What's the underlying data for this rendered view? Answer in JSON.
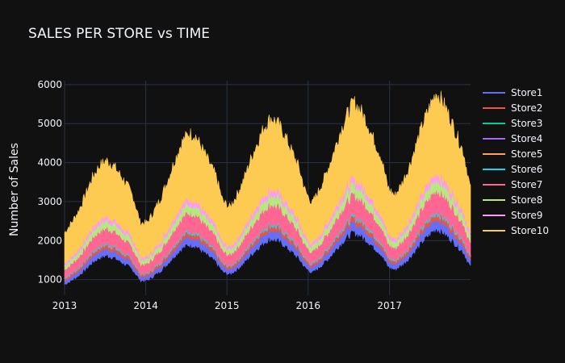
{
  "chart_data": {
    "type": "area",
    "title": "SALES PER STORE vs TIME",
    "xlabel": "",
    "ylabel": "Number of Sales",
    "x_ticks": [
      "2013",
      "2014",
      "2015",
      "2016",
      "2017"
    ],
    "y_ticks": [
      1000,
      2000,
      3000,
      4000,
      5000,
      6000
    ],
    "ylim": [
      600,
      6100
    ],
    "xlim": [
      "2013-01-01",
      "2017-12-31"
    ],
    "grid": true,
    "legend_position": "right",
    "stacked": true,
    "total_monthly_approx": [
      2200,
      2450,
      2750,
      3150,
      3600,
      3900,
      4050,
      3950,
      3700,
      3450,
      3100,
      2450,
      2450,
      2750,
      3100,
      3550,
      4050,
      4500,
      4750,
      4700,
      4350,
      4000,
      3650,
      3000,
      2850,
      3150,
      3550,
      4050,
      4500,
      4900,
      5150,
      5000,
      4700,
      4300,
      3900,
      3250,
      2950,
      3300,
      3700,
      4200,
      4750,
      5200,
      5550,
      5350,
      5000,
      4550,
      4150,
      3350,
      3150,
      3450,
      3850,
      4400,
      4950,
      5400,
      5800,
      5550,
      5150,
      4700,
      4250,
      3300
    ],
    "series": [
      {
        "name": "Store1",
        "color": "#636efa",
        "share": 0.072
      },
      {
        "name": "Store2",
        "color": "#ef553b",
        "share": 0.035
      },
      {
        "name": "Store3",
        "color": "#00cc96",
        "share": 0.003
      },
      {
        "name": "Store4",
        "color": "#ab63fa",
        "share": 0.003
      },
      {
        "name": "Store5",
        "color": "#ffa15a",
        "share": 0.003
      },
      {
        "name": "Store6",
        "color": "#19d3f3",
        "share": 0.012
      },
      {
        "name": "Store7",
        "color": "#ff6692",
        "share": 0.16
      },
      {
        "name": "Store8",
        "color": "#b6e880",
        "share": 0.08
      },
      {
        "name": "Store9",
        "color": "#ff97ff",
        "share": 0.045
      },
      {
        "name": "Store10",
        "color": "#fecb52",
        "share": 0.587
      }
    ]
  }
}
